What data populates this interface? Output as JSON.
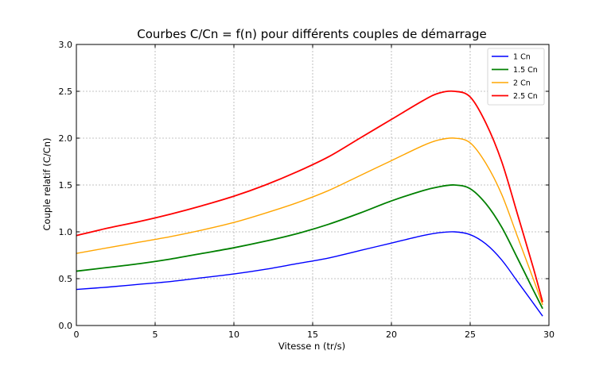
{
  "chart_data": {
    "type": "line",
    "title": "Courbes C/Cn = f(n) pour différents couples de démarrage",
    "xlabel": "Vitesse n (tr/s)",
    "ylabel": "Couple relatif (C/Cn)",
    "xlim": [
      0,
      30
    ],
    "ylim": [
      0,
      3.0
    ],
    "x_ticks": [
      "0",
      "5",
      "10",
      "15",
      "20",
      "25",
      "30"
    ],
    "y_ticks": [
      "0.0",
      "0.5",
      "1.0",
      "1.5",
      "2.0",
      "2.5",
      "3.0"
    ],
    "grid": true,
    "legend_position": "top-right",
    "x": [
      0,
      2,
      4,
      6,
      8,
      10,
      12,
      14,
      16,
      18,
      20,
      22,
      23,
      24,
      25,
      26,
      27,
      28,
      29,
      29.6
    ],
    "series": [
      {
        "name": "1 Cn",
        "color": "#0000ff",
        "linewidth": 1.4,
        "values": [
          0.385,
          0.41,
          0.44,
          0.47,
          0.51,
          0.55,
          0.6,
          0.66,
          0.72,
          0.8,
          0.88,
          0.96,
          0.99,
          1.0,
          0.97,
          0.87,
          0.7,
          0.47,
          0.24,
          0.1
        ]
      },
      {
        "name": "1.5 Cn",
        "color": "#008000",
        "linewidth": 1.8,
        "values": [
          0.58,
          0.62,
          0.66,
          0.71,
          0.77,
          0.83,
          0.9,
          0.98,
          1.08,
          1.2,
          1.33,
          1.44,
          1.48,
          1.5,
          1.46,
          1.3,
          1.05,
          0.72,
          0.38,
          0.18
        ]
      },
      {
        "name": "2 Cn",
        "color": "#ffa500",
        "linewidth": 1.4,
        "values": [
          0.77,
          0.83,
          0.89,
          0.95,
          1.02,
          1.1,
          1.2,
          1.31,
          1.44,
          1.6,
          1.76,
          1.92,
          1.98,
          2.0,
          1.95,
          1.73,
          1.4,
          0.95,
          0.5,
          0.22
        ]
      },
      {
        "name": "2.5 Cn",
        "color": "#ff0000",
        "linewidth": 1.8,
        "values": [
          0.96,
          1.04,
          1.11,
          1.19,
          1.28,
          1.38,
          1.5,
          1.64,
          1.8,
          2.0,
          2.2,
          2.4,
          2.48,
          2.5,
          2.44,
          2.16,
          1.75,
          1.19,
          0.62,
          0.25
        ]
      }
    ]
  }
}
